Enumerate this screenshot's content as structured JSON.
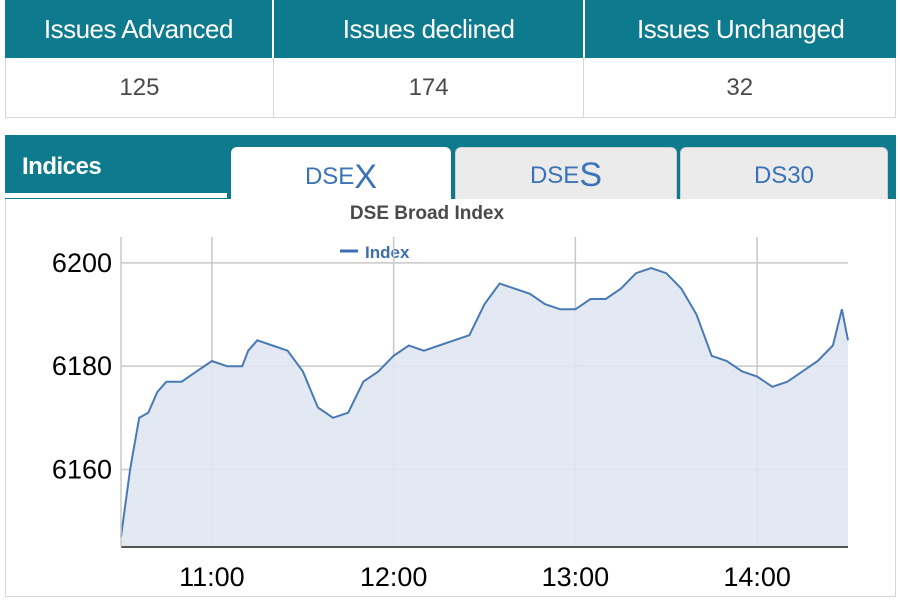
{
  "stats": {
    "headers": [
      "Issues Advanced",
      "Issues declined",
      "Issues Unchanged"
    ],
    "values": [
      "125",
      "174",
      "32"
    ]
  },
  "panel": {
    "title": "Indices",
    "tabs": [
      {
        "prefix": "DSE",
        "suffix": "X",
        "active": true
      },
      {
        "prefix": "DSE",
        "suffix": "S",
        "active": false
      },
      {
        "prefix": "DS30",
        "suffix": "",
        "active": false
      }
    ]
  },
  "colors": {
    "header": "#0e7a8e",
    "line": "#4a7ab5",
    "fill": "#dfe7f1",
    "tab_text": "#3b73b9"
  },
  "chart_data": {
    "type": "area",
    "title": "DSE Broad Index",
    "legend": {
      "entries": [
        "Index"
      ],
      "placement": "top-center"
    },
    "x_ticks": [
      "11:00",
      "12:00",
      "13:00",
      "14:00"
    ],
    "y_ticks": [
      6160,
      6180,
      6200
    ],
    "ylim": [
      6145,
      6205
    ],
    "xlim": [
      "10:30",
      "14:30"
    ],
    "grid": true,
    "series": [
      {
        "name": "Index",
        "x": [
          "10:30",
          "10:33",
          "10:36",
          "10:39",
          "10:42",
          "10:45",
          "10:50",
          "10:55",
          "11:00",
          "11:05",
          "11:10",
          "11:12",
          "11:15",
          "11:20",
          "11:25",
          "11:30",
          "11:35",
          "11:40",
          "11:45",
          "11:50",
          "11:55",
          "12:00",
          "12:05",
          "12:10",
          "12:15",
          "12:20",
          "12:25",
          "12:30",
          "12:35",
          "12:40",
          "12:45",
          "12:50",
          "12:55",
          "13:00",
          "13:05",
          "13:10",
          "13:15",
          "13:20",
          "13:25",
          "13:30",
          "13:35",
          "13:40",
          "13:45",
          "13:50",
          "13:55",
          "14:00",
          "14:05",
          "14:10",
          "14:15",
          "14:20",
          "14:25",
          "14:28",
          "14:30"
        ],
        "values": [
          6147,
          6160,
          6170,
          6171,
          6175,
          6177,
          6177,
          6179,
          6181,
          6180,
          6180,
          6183,
          6185,
          6184,
          6183,
          6179,
          6172,
          6170,
          6171,
          6177,
          6179,
          6182,
          6184,
          6183,
          6184,
          6185,
          6186,
          6192,
          6196,
          6195,
          6194,
          6192,
          6191,
          6191,
          6193,
          6193,
          6195,
          6198,
          6199,
          6198,
          6195,
          6190,
          6182,
          6181,
          6179,
          6178,
          6176,
          6177,
          6179,
          6181,
          6184,
          6191,
          6185
        ]
      }
    ]
  }
}
